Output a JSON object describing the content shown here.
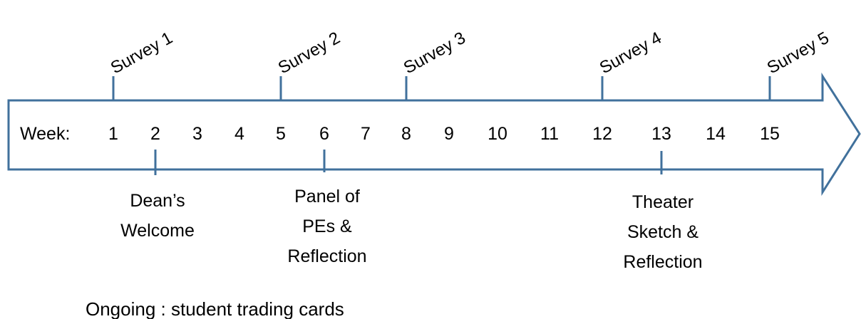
{
  "diagram": {
    "week_label": "Week:",
    "weeks": [
      "1",
      "2",
      "3",
      "4",
      "5",
      "6",
      "7",
      "8",
      "9",
      "10",
      "11",
      "12",
      "13",
      "14",
      "15"
    ],
    "surveys": [
      {
        "label": "Survey 1",
        "week": "1"
      },
      {
        "label": "Survey 2",
        "week": "5"
      },
      {
        "label": "Survey 3",
        "week": "8"
      },
      {
        "label": "Survey 4",
        "week": "12"
      },
      {
        "label": "Survey 5",
        "week": "15"
      }
    ],
    "events": [
      {
        "week": "2",
        "lines": [
          "Dean’s",
          "Welcome"
        ]
      },
      {
        "week": "6",
        "lines": [
          "Panel of",
          "PEs &",
          "Reflection"
        ]
      },
      {
        "week": "13",
        "lines": [
          "Theater",
          "Sketch &",
          "Reflection"
        ]
      }
    ],
    "footer": "Ongoing : student trading cards"
  },
  "colors": {
    "arrow_outline": "#41719c",
    "tick": "#41719c",
    "text": "#000000"
  }
}
